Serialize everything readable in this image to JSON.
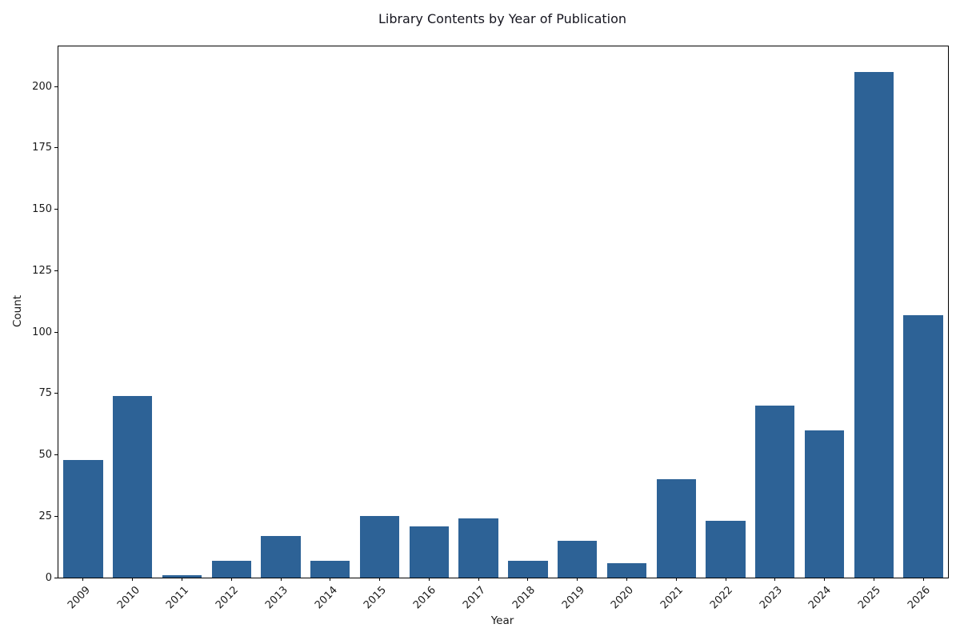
{
  "chart_data": {
    "type": "bar",
    "title": "Library Contents by Year of Publication",
    "xlabel": "Year",
    "ylabel": "Count",
    "categories": [
      "2009",
      "2010",
      "2011",
      "2012",
      "2013",
      "2014",
      "2015",
      "2016",
      "2017",
      "2018",
      "2019",
      "2020",
      "2021",
      "2022",
      "2023",
      "2024",
      "2025",
      "2026"
    ],
    "values": [
      48,
      74,
      1,
      7,
      17,
      7,
      25,
      21,
      24,
      7,
      15,
      6,
      40,
      23,
      70,
      60,
      206,
      107
    ],
    "ylim": [
      0,
      216.3
    ],
    "yticks": [
      0,
      25,
      50,
      75,
      100,
      125,
      150,
      175,
      200
    ],
    "x_tick_rotation": 45,
    "grid": false,
    "legend": "none",
    "bar_color": "#2d6296",
    "spine_color": "#000000",
    "text_color": "#1a1a1a",
    "background_color": "#ffffff"
  }
}
